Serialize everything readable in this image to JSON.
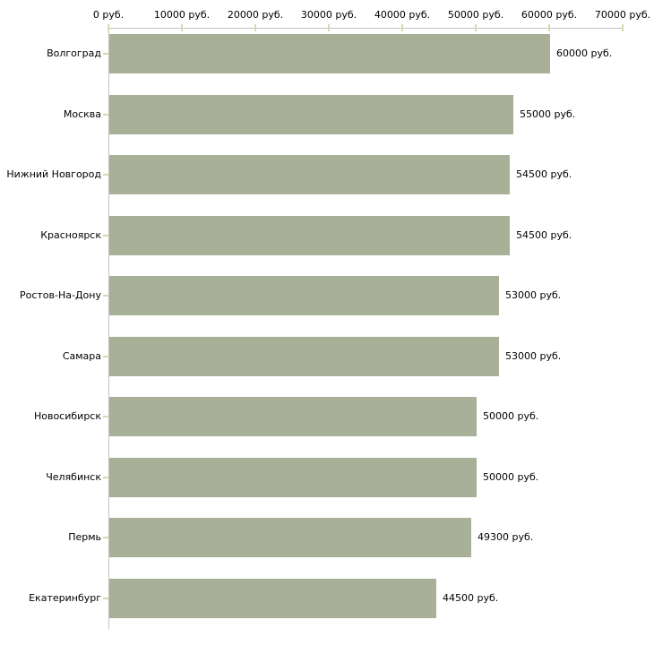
{
  "chart_data": {
    "type": "bar",
    "orientation": "horizontal",
    "title": "",
    "categories": [
      "Волгоград",
      "Москва",
      "Нижний Новгород",
      "Красноярск",
      "Ростов-На-Дону",
      "Самара",
      "Новосибирск",
      "Челябинск",
      "Пермь",
      "Екатеринбург"
    ],
    "values": [
      60000,
      55000,
      54500,
      54500,
      53000,
      53000,
      50000,
      50000,
      49300,
      44500
    ],
    "value_labels": [
      "60000 руб.",
      "55000 руб.",
      "54500 руб.",
      "54500 руб.",
      "53000 руб.",
      "53000 руб.",
      "50000 руб.",
      "50000 руб.",
      "49300 руб.",
      "44500 руб."
    ],
    "x_axis": {
      "position": "top",
      "xlim": [
        0,
        70000
      ],
      "tick_values": [
        0,
        10000,
        20000,
        30000,
        40000,
        50000,
        60000,
        70000
      ],
      "tick_labels": [
        "0 руб.",
        "10000 руб.",
        "20000 руб.",
        "30000 руб.",
        "40000 руб.",
        "50000 руб.",
        "60000 руб.",
        "70000 руб."
      ]
    },
    "ylabel": "",
    "xlabel": "",
    "grid": false,
    "legend": false,
    "colors": {
      "bar": "#a8b197",
      "axis_line": "#c2c2c2",
      "tick_mark": "#d9d9b0",
      "text": "#000000",
      "background": "#ffffff"
    }
  }
}
